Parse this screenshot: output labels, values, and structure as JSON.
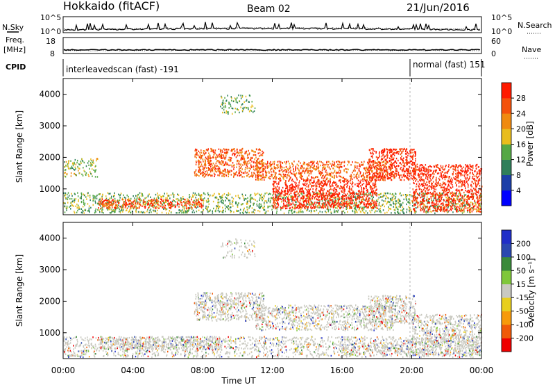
{
  "header": {
    "station": "Hokkaido (fitACF)",
    "beam": "Beam 02",
    "date": "21/Jun/2016"
  },
  "panels": {
    "nsky_label": "N.Sky",
    "nsky_ticks": [
      "10^5",
      "10^0"
    ],
    "nsearch_label": "N.Search",
    "freq_label_1": "Freq.",
    "freq_label_2": "[MHz]",
    "freq_ticks": [
      "18",
      "8"
    ],
    "nave_label": "Nave",
    "nave_ticks": [
      "60",
      "0"
    ],
    "cpid_label": "CPID",
    "cpid_1": "interleavedscan (fast) -191",
    "cpid_2": "normal (fast) 151"
  },
  "colors": {
    "power": [
      "#0000ff",
      "#1c3fa8",
      "#2f7f5a",
      "#55a845",
      "#e9bd1d",
      "#f08a10",
      "#f4520c",
      "#ff1a00"
    ],
    "velocity": [
      "#ee0000",
      "#f05a08",
      "#f79a0a",
      "#e8cf1e",
      "#c9c9c0",
      "#7fc73a",
      "#3a8a3a",
      "#2a48b0",
      "#1f2ec8"
    ],
    "velocity_gray": "#c8c8bf"
  },
  "chart_data": [
    {
      "type": "heatmap",
      "name": "power-panel",
      "xlabel": "",
      "ylabel": "Slant Range [km]",
      "xlim": [
        0,
        24
      ],
      "ylim": [
        180,
        4500
      ],
      "ytick_values": [
        1000,
        2000,
        3000,
        4000
      ],
      "ytick_labels": [
        "1000",
        "2000",
        "3000",
        "4000"
      ],
      "colorbar_label": "Power [dB]",
      "colorbar_ticks": [
        "28",
        "24",
        "20",
        "16",
        "12",
        "8",
        "4"
      ],
      "colorbar_range": [
        0,
        32
      ],
      "mode_change_time": 20.0,
      "scatter_regions": [
        {
          "t": [
            0.0,
            24.0
          ],
          "r": [
            250,
            900
          ],
          "level": 0.45,
          "density": 0.55
        },
        {
          "t": [
            2.0,
            8.0
          ],
          "r": [
            400,
            700
          ],
          "level": 0.85,
          "density": 0.9
        },
        {
          "t": [
            7.5,
            11.5
          ],
          "r": [
            1400,
            2300
          ],
          "level": 0.8,
          "density": 0.85
        },
        {
          "t": [
            11.0,
            19.0
          ],
          "r": [
            1300,
            1900
          ],
          "level": 0.78,
          "density": 0.8
        },
        {
          "t": [
            12.0,
            18.0
          ],
          "r": [
            400,
            1300
          ],
          "level": 0.97,
          "density": 0.95
        },
        {
          "t": [
            17.5,
            20.2
          ],
          "r": [
            1300,
            2300
          ],
          "level": 0.95,
          "density": 0.9
        },
        {
          "t": [
            20.0,
            24.0
          ],
          "r": [
            300,
            1800
          ],
          "level": 0.93,
          "density": 0.85
        },
        {
          "t": [
            9.0,
            11.0
          ],
          "r": [
            3400,
            4000
          ],
          "level": 0.45,
          "density": 0.4
        },
        {
          "t": [
            0.0,
            2.0
          ],
          "r": [
            1400,
            2000
          ],
          "level": 0.5,
          "density": 0.5
        }
      ]
    },
    {
      "type": "heatmap",
      "name": "velocity-panel",
      "xlabel": "Time UT",
      "ylabel": "Slant Range [km]",
      "xlim": [
        0,
        24
      ],
      "ylim": [
        180,
        4500
      ],
      "ytick_values": [
        1000,
        2000,
        3000,
        4000
      ],
      "ytick_labels": [
        "1000",
        "2000",
        "3000",
        "4000"
      ],
      "xtick_values": [
        0,
        4,
        8,
        12,
        16,
        20,
        24
      ],
      "xtick_labels": [
        "00:00",
        "04:00",
        "08:00",
        "12:00",
        "16:00",
        "20:00",
        "00:00"
      ],
      "colorbar_label": "Velocity [m s⁻¹]",
      "colorbar_ticks": [
        "200",
        "100",
        "50",
        "15",
        "-15",
        "-50",
        "-100",
        "-200"
      ],
      "mode_change_time": 20.0,
      "scatter_regions": [
        {
          "t": [
            0.0,
            24.0
          ],
          "r": [
            250,
            900
          ],
          "level": 0.5,
          "density": 0.55
        },
        {
          "t": [
            2.0,
            9.0
          ],
          "r": [
            500,
            900
          ],
          "level": 0.5,
          "density": 0.8
        },
        {
          "t": [
            7.5,
            11.5
          ],
          "r": [
            1400,
            2300
          ],
          "level": 0.5,
          "density": 0.8
        },
        {
          "t": [
            11.0,
            19.0
          ],
          "r": [
            1100,
            1900
          ],
          "level": 0.5,
          "density": 0.75
        },
        {
          "t": [
            16.0,
            20.0
          ],
          "r": [
            300,
            700
          ],
          "level": 0.35,
          "density": 0.6
        },
        {
          "t": [
            17.5,
            20.2
          ],
          "r": [
            1300,
            2200
          ],
          "level": 0.5,
          "density": 0.8
        },
        {
          "t": [
            20.0,
            24.0
          ],
          "r": [
            300,
            1600
          ],
          "level": 0.5,
          "density": 0.8
        },
        {
          "t": [
            9.0,
            11.0
          ],
          "r": [
            3400,
            4000
          ],
          "level": 0.7,
          "density": 0.35
        }
      ]
    }
  ]
}
